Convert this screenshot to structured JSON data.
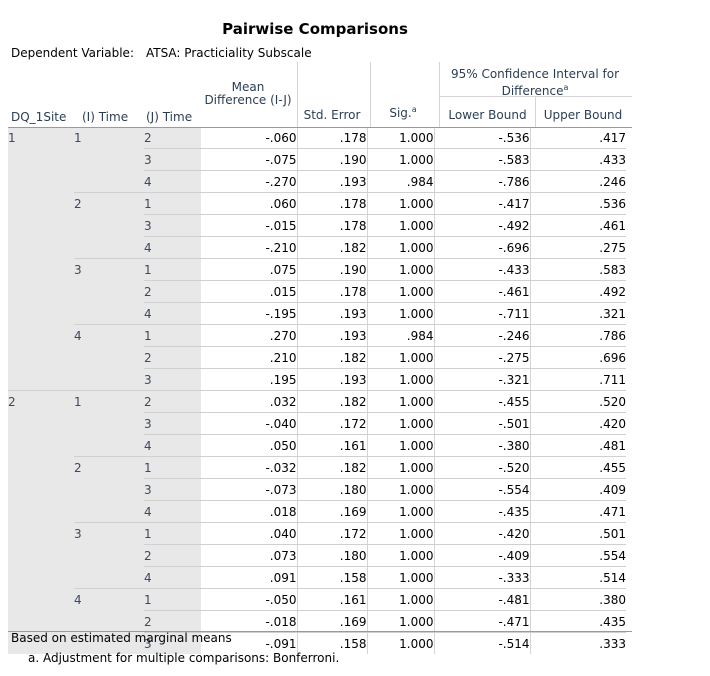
{
  "title": "Pairwise Comparisons",
  "dependent_variable_label": "Dependent Variable:",
  "dependent_variable_value": "ATSA: Practiciality Subscale",
  "headers": {
    "site": "DQ_1Site",
    "i_time": "(I) Time",
    "j_time": "(J) Time",
    "mean_diff": "Mean Difference (I-J)",
    "std_error": "Std. Error",
    "sig": "Sig.",
    "sig_sup": "a",
    "ci": "95% Confidence Interval for Difference",
    "ci_sup": "a",
    "lower": "Lower Bound",
    "upper": "Upper Bound"
  },
  "rows": [
    {
      "site": "1",
      "i": "1",
      "j": "2",
      "md": "-.060",
      "se": ".178",
      "sig": "1.000",
      "lb": "-.536",
      "ub": ".417"
    },
    {
      "site": "",
      "i": "",
      "j": "3",
      "md": "-.075",
      "se": ".190",
      "sig": "1.000",
      "lb": "-.583",
      "ub": ".433"
    },
    {
      "site": "",
      "i": "",
      "j": "4",
      "md": "-.270",
      "se": ".193",
      "sig": ".984",
      "lb": "-.786",
      "ub": ".246"
    },
    {
      "site": "",
      "i": "2",
      "j": "1",
      "md": ".060",
      "se": ".178",
      "sig": "1.000",
      "lb": "-.417",
      "ub": ".536"
    },
    {
      "site": "",
      "i": "",
      "j": "3",
      "md": "-.015",
      "se": ".178",
      "sig": "1.000",
      "lb": "-.492",
      "ub": ".461"
    },
    {
      "site": "",
      "i": "",
      "j": "4",
      "md": "-.210",
      "se": ".182",
      "sig": "1.000",
      "lb": "-.696",
      "ub": ".275"
    },
    {
      "site": "",
      "i": "3",
      "j": "1",
      "md": ".075",
      "se": ".190",
      "sig": "1.000",
      "lb": "-.433",
      "ub": ".583"
    },
    {
      "site": "",
      "i": "",
      "j": "2",
      "md": ".015",
      "se": ".178",
      "sig": "1.000",
      "lb": "-.461",
      "ub": ".492"
    },
    {
      "site": "",
      "i": "",
      "j": "4",
      "md": "-.195",
      "se": ".193",
      "sig": "1.000",
      "lb": "-.711",
      "ub": ".321"
    },
    {
      "site": "",
      "i": "4",
      "j": "1",
      "md": ".270",
      "se": ".193",
      "sig": ".984",
      "lb": "-.246",
      "ub": ".786"
    },
    {
      "site": "",
      "i": "",
      "j": "2",
      "md": ".210",
      "se": ".182",
      "sig": "1.000",
      "lb": "-.275",
      "ub": ".696"
    },
    {
      "site": "",
      "i": "",
      "j": "3",
      "md": ".195",
      "se": ".193",
      "sig": "1.000",
      "lb": "-.321",
      "ub": ".711"
    },
    {
      "site": "2",
      "i": "1",
      "j": "2",
      "md": ".032",
      "se": ".182",
      "sig": "1.000",
      "lb": "-.455",
      "ub": ".520"
    },
    {
      "site": "",
      "i": "",
      "j": "3",
      "md": "-.040",
      "se": ".172",
      "sig": "1.000",
      "lb": "-.501",
      "ub": ".420"
    },
    {
      "site": "",
      "i": "",
      "j": "4",
      "md": ".050",
      "se": ".161",
      "sig": "1.000",
      "lb": "-.380",
      "ub": ".481"
    },
    {
      "site": "",
      "i": "2",
      "j": "1",
      "md": "-.032",
      "se": ".182",
      "sig": "1.000",
      "lb": "-.520",
      "ub": ".455"
    },
    {
      "site": "",
      "i": "",
      "j": "3",
      "md": "-.073",
      "se": ".180",
      "sig": "1.000",
      "lb": "-.554",
      "ub": ".409"
    },
    {
      "site": "",
      "i": "",
      "j": "4",
      "md": ".018",
      "se": ".169",
      "sig": "1.000",
      "lb": "-.435",
      "ub": ".471"
    },
    {
      "site": "",
      "i": "3",
      "j": "1",
      "md": ".040",
      "se": ".172",
      "sig": "1.000",
      "lb": "-.420",
      "ub": ".501"
    },
    {
      "site": "",
      "i": "",
      "j": "2",
      "md": ".073",
      "se": ".180",
      "sig": "1.000",
      "lb": "-.409",
      "ub": ".554"
    },
    {
      "site": "",
      "i": "",
      "j": "4",
      "md": ".091",
      "se": ".158",
      "sig": "1.000",
      "lb": "-.333",
      "ub": ".514"
    },
    {
      "site": "",
      "i": "4",
      "j": "1",
      "md": "-.050",
      "se": ".161",
      "sig": "1.000",
      "lb": "-.481",
      "ub": ".380"
    },
    {
      "site": "",
      "i": "",
      "j": "2",
      "md": "-.018",
      "se": ".169",
      "sig": "1.000",
      "lb": "-.471",
      "ub": ".435"
    },
    {
      "site": "",
      "i": "",
      "j": "3",
      "md": "-.091",
      "se": ".158",
      "sig": "1.000",
      "lb": "-.514",
      "ub": ".333"
    }
  ],
  "footnotes": {
    "basis": "Based on estimated marginal means",
    "a": "a. Adjustment for multiple comparisons: Bonferroni."
  }
}
